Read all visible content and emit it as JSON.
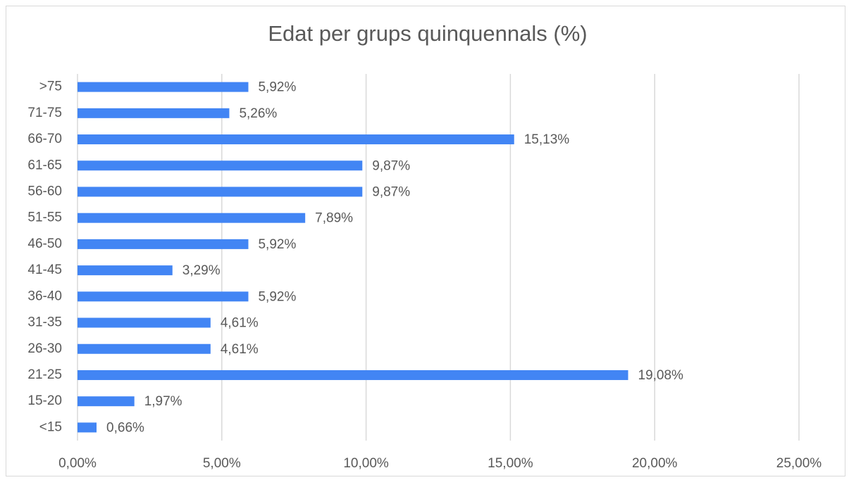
{
  "chart_data": {
    "type": "barh",
    "title": "Edat per grups quinquennals (%)",
    "categories": [
      "<15",
      "15-20",
      "21-25",
      "26-30",
      "31-35",
      "36-40",
      "41-45",
      "46-50",
      "51-55",
      "56-60",
      "61-65",
      "66-70",
      "71-75",
      ">75"
    ],
    "values": [
      0.66,
      1.97,
      19.08,
      4.61,
      4.61,
      5.92,
      3.29,
      5.92,
      7.89,
      9.87,
      9.87,
      15.13,
      5.26,
      5.92
    ],
    "value_labels": [
      "0,66%",
      "1,97%",
      "19,08%",
      "4,61%",
      "4,61%",
      "5,92%",
      "3,29%",
      "5,92%",
      "7,89%",
      "9,87%",
      "9,87%",
      "15,13%",
      "5,26%",
      "5,92%"
    ],
    "color": "#4285f4",
    "xlim": [
      0,
      25
    ],
    "xticks": [
      {
        "value": 0,
        "label": "0,00%"
      },
      {
        "value": 5,
        "label": "5,00%"
      },
      {
        "value": 10,
        "label": "10,00%"
      },
      {
        "value": 15,
        "label": "15,00%"
      },
      {
        "value": 20,
        "label": "20,00%"
      },
      {
        "value": 25,
        "label": "25,00%"
      }
    ],
    "grid": true
  }
}
